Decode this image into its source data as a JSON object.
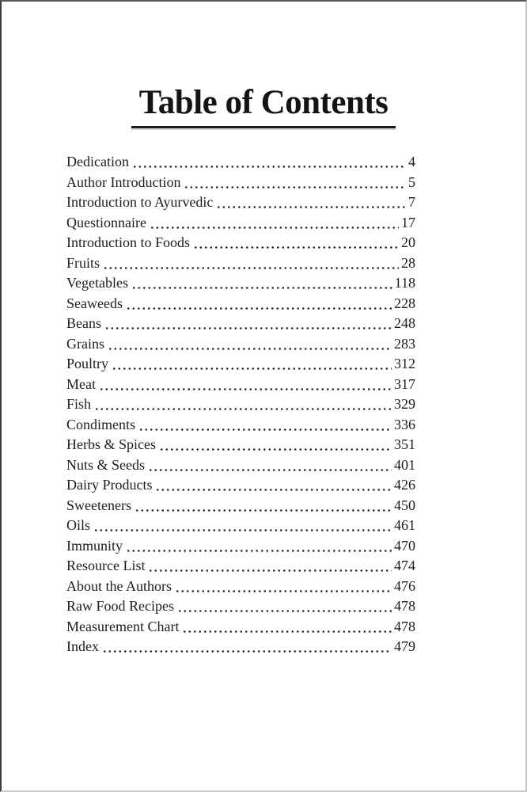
{
  "page": {
    "title": "Table of Contents"
  },
  "toc": {
    "entries": [
      {
        "label": "Dedication",
        "page": "4"
      },
      {
        "label": "Author Introduction",
        "page": "5"
      },
      {
        "label": "Introduction to Ayurvedic",
        "page": "7"
      },
      {
        "label": "Questionnaire",
        "page": "17"
      },
      {
        "label": "Introduction to Foods",
        "page": "20"
      },
      {
        "label": "Fruits",
        "page": "28"
      },
      {
        "label": "Vegetables",
        "page": "118"
      },
      {
        "label": "Seaweeds",
        "page": "228"
      },
      {
        "label": "Beans",
        "page": "248"
      },
      {
        "label": "Grains",
        "page": "283"
      },
      {
        "label": "Poultry",
        "page": "312"
      },
      {
        "label": "Meat",
        "page": "317"
      },
      {
        "label": "Fish",
        "page": "329"
      },
      {
        "label": "Condiments",
        "page": "336"
      },
      {
        "label": "Herbs & Spices",
        "page": "351"
      },
      {
        "label": "Nuts & Seeds",
        "page": "401"
      },
      {
        "label": "Dairy Products",
        "page": "426"
      },
      {
        "label": "Sweeteners",
        "page": "450"
      },
      {
        "label": "Oils",
        "page": "461"
      },
      {
        "label": "Immunity",
        "page": "470"
      },
      {
        "label": "Resource List",
        "page": "474"
      },
      {
        "label": "About the Authors",
        "page": "476"
      },
      {
        "label": "Raw Food Recipes",
        "page": "478"
      },
      {
        "label": "Measurement Chart",
        "page": "478"
      },
      {
        "label": "Index",
        "page": "479"
      }
    ]
  },
  "colors": {
    "text": "#1c1c1c",
    "background": "#ffffff",
    "underline": "#1a1a1a"
  }
}
